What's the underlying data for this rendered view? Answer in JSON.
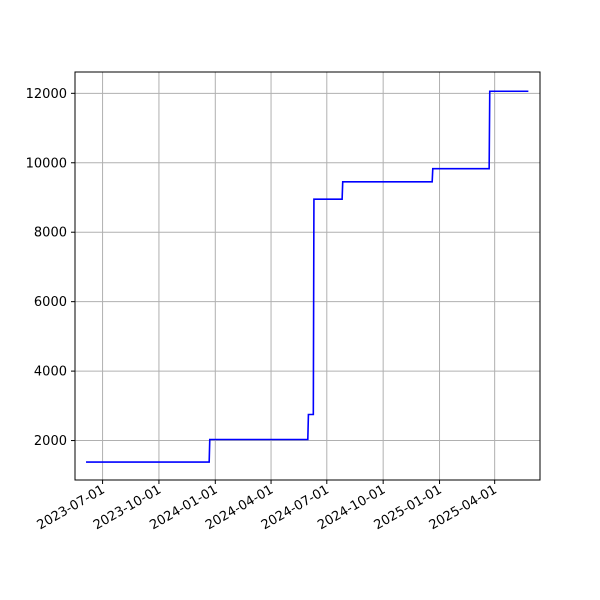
{
  "chart_data": {
    "type": "line",
    "title": "",
    "xlabel": "",
    "ylabel": "",
    "x_type": "date",
    "xlim": [
      "2023-05-17",
      "2025-06-14"
    ],
    "ylim": [
      864,
      12614
    ],
    "x_ticks": [
      "2023-07-01",
      "2023-10-01",
      "2024-01-01",
      "2024-04-01",
      "2024-07-01",
      "2024-10-01",
      "2025-01-01",
      "2025-04-01"
    ],
    "y_ticks": [
      2000,
      4000,
      6000,
      8000,
      10000,
      12000
    ],
    "grid": true,
    "legend": "none",
    "step": true,
    "series": [
      {
        "name": "",
        "color": "#0000ff",
        "points": [
          {
            "x": "2023-06-04",
            "y": 1380
          },
          {
            "x": "2023-12-22",
            "y": 1380
          },
          {
            "x": "2023-12-23",
            "y": 2030
          },
          {
            "x": "2024-05-31",
            "y": 2030
          },
          {
            "x": "2024-06-01",
            "y": 2750
          },
          {
            "x": "2024-06-09",
            "y": 2750
          },
          {
            "x": "2024-06-10",
            "y": 8950
          },
          {
            "x": "2024-07-26",
            "y": 8950
          },
          {
            "x": "2024-07-27",
            "y": 9450
          },
          {
            "x": "2024-12-20",
            "y": 9450
          },
          {
            "x": "2024-12-21",
            "y": 9830
          },
          {
            "x": "2025-03-23",
            "y": 9830
          },
          {
            "x": "2025-03-24",
            "y": 12060
          },
          {
            "x": "2025-05-26",
            "y": 12060
          }
        ]
      }
    ]
  }
}
